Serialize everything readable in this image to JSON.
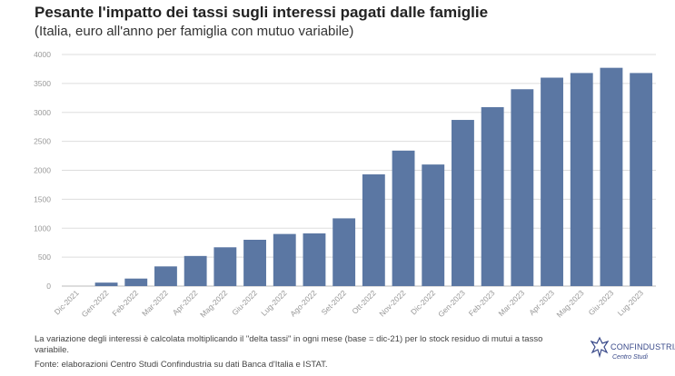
{
  "header": {
    "title": "Pesante l'impatto dei tassi sugli interessi pagati dalle famiglie",
    "subtitle": "(Italia, euro all'anno per famiglia con mutuo variabile)"
  },
  "footer": {
    "note": "La variazione degli interessi è calcolata moltiplicando il \"delta tassi\" in ogni mese (base = dic-21) per lo stock residuo di mutui a tasso variabile.",
    "source": "Fonte: elaborazioni Centro Studi Confindustria su dati Banca d'Italia e ISTAT."
  },
  "logo": {
    "name": "CONFINDUSTRIA",
    "sub": "Centro Studi"
  },
  "colors": {
    "bar": "#5b77a3",
    "grid": "#dddddd",
    "axis": "#bbbbbb",
    "tick": "#999999"
  },
  "chart_data": {
    "type": "bar",
    "title": "Pesante l'impatto dei tassi sugli interessi pagati dalle famiglie",
    "subtitle": "(Italia, euro all'anno per famiglia con mutuo variabile)",
    "xlabel": "",
    "ylabel": "",
    "ylim": [
      0,
      4000
    ],
    "yticks": [
      "0",
      "500",
      "1000",
      "1500",
      "2000",
      "2500",
      "3000",
      "3500",
      "4000"
    ],
    "grid": true,
    "categories": [
      "Dic-2021",
      "Gen-2022",
      "Feb-2022",
      "Mar-2022",
      "Apr-2022",
      "Mag-2022",
      "Giu-2022",
      "Lug-2022",
      "Ago-2022",
      "Set-2022",
      "Ott-2022",
      "Nov-2022",
      "Dic-2022",
      "Gen-2023",
      "Feb-2023",
      "Mar-2023",
      "Apr-2023",
      "Mag-2023",
      "Giu-2023",
      "Lug-2023"
    ],
    "values": [
      0,
      60,
      130,
      340,
      520,
      670,
      800,
      900,
      910,
      1170,
      1930,
      2340,
      2100,
      2870,
      3090,
      3400,
      3600,
      3680,
      3770,
      3680
    ]
  }
}
